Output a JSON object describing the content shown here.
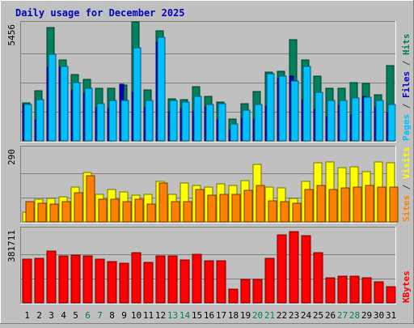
{
  "chart_data": {
    "type": "bar",
    "title": "Daily usage for December 2025",
    "categories": [
      "1",
      "2",
      "3",
      "4",
      "5",
      "6",
      "7",
      "8",
      "9",
      "10",
      "11",
      "12",
      "13",
      "14",
      "15",
      "16",
      "17",
      "18",
      "19",
      "20",
      "21",
      "22",
      "23",
      "24",
      "25",
      "26",
      "27",
      "28",
      "29",
      "30",
      "31"
    ],
    "weekend_days": [
      "6",
      "7",
      "13",
      "14",
      "20",
      "21",
      "27",
      "28"
    ],
    "panels": [
      {
        "id": "top",
        "max_label": "5456",
        "ylim": [
          0,
          5456
        ],
        "right_label": [
          {
            "text": "Pages",
            "color": "#00c0ff"
          },
          {
            "text": " / ",
            "color": "#404040"
          },
          {
            "text": "Files",
            "color": "#0000c0"
          },
          {
            "text": " / ",
            "color": "#404040"
          },
          {
            "text": "Hits",
            "color": "#00805c"
          }
        ],
        "series": [
          {
            "name": "Hits",
            "color": "#00805c",
            "values": [
              1780,
              2360,
              5300,
              3800,
              3110,
              2880,
              2480,
              2480,
              2620,
              5560,
              2400,
              5160,
              1960,
              1940,
              2540,
              2080,
              1800,
              1040,
              1740,
              2300,
              3220,
              3240,
              4750,
              3800,
              3040,
              2480,
              2460,
              2720,
              2680,
              2160,
              3540
            ]
          },
          {
            "name": "Files",
            "color": "#0000c0",
            "values": [
              1700,
              1000,
              3450,
              3450,
              2400,
              2250,
              1540,
              1500,
              2640,
              2280,
              1540,
              4620,
              1380,
              1500,
              1400,
              1580,
              1000,
              500,
              1060,
              1020,
              1640,
              2900,
              3020,
              1940,
              1480,
              1120,
              1680,
              1200,
              2080,
              1580,
              1340
            ]
          },
          {
            "name": "Pages",
            "color": "#00c0ff",
            "values": [
              1700,
              1940,
              4050,
              3500,
              2740,
              2460,
              1760,
              1900,
              1880,
              4350,
              1880,
              4840,
              1880,
              1800,
              2080,
              1720,
              1760,
              800,
              1440,
              1720,
              3140,
              3040,
              2800,
              3480,
              2260,
              1880,
              1900,
              2000,
              2060,
              1880,
              1720
            ]
          }
        ]
      },
      {
        "id": "mid",
        "max_label": "290",
        "ylim": [
          0,
          290
        ],
        "right_label": [
          {
            "text": "Sites",
            "color": "#ff8000"
          },
          {
            "text": " / ",
            "color": "#404040"
          },
          {
            "text": "Visits",
            "color": "#ffff00"
          }
        ],
        "series": [
          {
            "name": "Visits",
            "color": "#ffff00",
            "values": [
              40,
              90,
              95,
              100,
              140,
              195,
              110,
              130,
              120,
              105,
              110,
              160,
              110,
              155,
              145,
              140,
              150,
              145,
              165,
              230,
              140,
              135,
              95,
              160,
              235,
              240,
              215,
              220,
              200,
              240,
              235
            ]
          },
          {
            "name": "Sites",
            "color": "#ff8000",
            "values": [
              80,
              75,
              70,
              80,
              115,
              185,
              90,
              90,
              80,
              90,
              70,
              155,
              80,
              80,
              130,
              105,
              108,
              110,
              125,
              145,
              85,
              80,
              75,
              130,
              145,
              130,
              135,
              140,
              145,
              140,
              140
            ]
          }
        ]
      },
      {
        "id": "bottom",
        "max_label": "381711",
        "ylim": [
          0,
          381711
        ],
        "right_label": [
          {
            "text": "KBytes",
            "color": "#ff0000"
          }
        ],
        "series": [
          {
            "name": "KBytes",
            "color": "#ff0000",
            "values": [
              230000,
              235000,
              270000,
              245000,
              250000,
              245000,
              228000,
              215000,
              208000,
              265000,
              210000,
              248000,
              245000,
              226000,
              255000,
              222000,
              222000,
              72000,
              123000,
              123000,
              232000,
              358000,
              375000,
              350000,
              265000,
              130000,
              140000,
              140000,
              132000,
              110000,
              85000
            ]
          }
        ]
      }
    ]
  }
}
